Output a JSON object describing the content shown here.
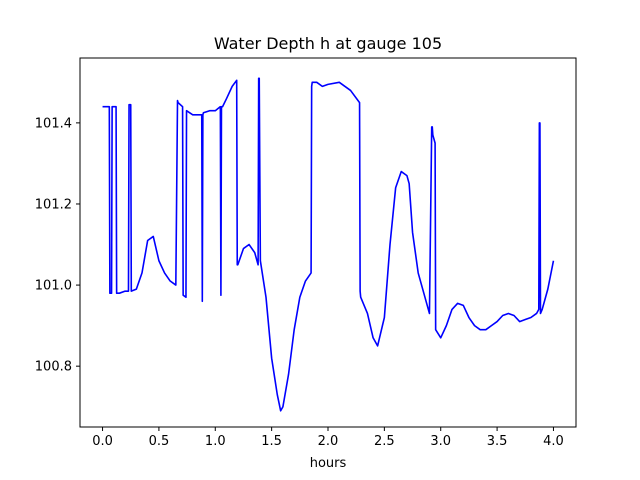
{
  "chart_data": {
    "type": "line",
    "title": "Water Depth h at gauge 105",
    "xlabel": "hours",
    "ylabel": "",
    "xlim": [
      -0.2,
      4.2
    ],
    "ylim": [
      100.65,
      101.56
    ],
    "xticks": [
      0.0,
      0.5,
      1.0,
      1.5,
      2.0,
      2.5,
      3.0,
      3.5,
      4.0
    ],
    "xtick_labels": [
      "0.0",
      "0.5",
      "1.0",
      "1.5",
      "2.0",
      "2.5",
      "3.0",
      "3.5",
      "4.0"
    ],
    "yticks": [
      100.8,
      101.0,
      101.2,
      101.4
    ],
    "ytick_labels": [
      "100.8",
      "101.0",
      "101.2",
      "101.4"
    ],
    "grid": false,
    "series": [
      {
        "color": "#0000ff",
        "x": [
          0.0,
          0.06,
          0.065,
          0.08,
          0.085,
          0.12,
          0.125,
          0.15,
          0.2,
          0.23,
          0.235,
          0.25,
          0.255,
          0.3,
          0.35,
          0.4,
          0.45,
          0.5,
          0.55,
          0.6,
          0.65,
          0.665,
          0.67,
          0.71,
          0.715,
          0.74,
          0.745,
          0.8,
          0.88,
          0.885,
          0.89,
          0.895,
          0.95,
          1.0,
          1.045,
          1.05,
          1.055,
          1.06,
          1.065,
          1.1,
          1.15,
          1.19,
          1.195,
          1.2,
          1.25,
          1.3,
          1.35,
          1.38,
          1.385,
          1.39,
          1.4,
          1.45,
          1.5,
          1.55,
          1.58,
          1.6,
          1.65,
          1.7,
          1.75,
          1.8,
          1.85,
          1.855,
          1.86,
          1.9,
          1.95,
          2.0,
          2.1,
          2.2,
          2.28,
          2.285,
          2.29,
          2.35,
          2.4,
          2.44,
          2.5,
          2.55,
          2.6,
          2.65,
          2.7,
          2.72,
          2.75,
          2.8,
          2.85,
          2.9,
          2.92,
          2.925,
          2.93,
          2.95,
          2.955,
          3.0,
          3.05,
          3.1,
          3.15,
          3.2,
          3.25,
          3.3,
          3.35,
          3.4,
          3.45,
          3.5,
          3.55,
          3.6,
          3.65,
          3.7,
          3.75,
          3.8,
          3.85,
          3.87,
          3.875,
          3.88,
          3.885,
          3.9,
          3.95,
          4.0
        ],
        "y": [
          101.44,
          101.44,
          100.98,
          100.98,
          101.44,
          101.44,
          100.98,
          100.98,
          100.985,
          100.985,
          101.445,
          101.445,
          100.985,
          100.99,
          101.03,
          101.11,
          101.12,
          101.06,
          101.03,
          101.01,
          101.0,
          101.455,
          101.45,
          101.44,
          100.975,
          100.97,
          101.43,
          101.42,
          101.42,
          100.96,
          101.42,
          101.425,
          101.43,
          101.43,
          101.44,
          100.975,
          101.44,
          101.44,
          101.44,
          101.46,
          101.49,
          101.505,
          101.05,
          101.05,
          101.09,
          101.1,
          101.08,
          101.05,
          101.51,
          101.51,
          101.06,
          100.97,
          100.82,
          100.73,
          100.69,
          100.7,
          100.78,
          100.89,
          100.97,
          101.01,
          101.03,
          101.49,
          101.5,
          101.5,
          101.49,
          101.495,
          101.5,
          101.48,
          101.45,
          100.985,
          100.97,
          100.93,
          100.87,
          100.85,
          100.92,
          101.1,
          101.24,
          101.28,
          101.27,
          101.25,
          101.13,
          101.03,
          100.98,
          100.93,
          101.39,
          101.39,
          101.37,
          101.35,
          100.89,
          100.87,
          100.9,
          100.94,
          100.955,
          100.95,
          100.92,
          100.9,
          100.89,
          100.89,
          100.9,
          100.91,
          100.925,
          100.93,
          100.925,
          100.91,
          100.915,
          100.92,
          100.93,
          100.94,
          101.4,
          101.4,
          100.93,
          100.94,
          100.99,
          101.06
        ]
      }
    ]
  }
}
